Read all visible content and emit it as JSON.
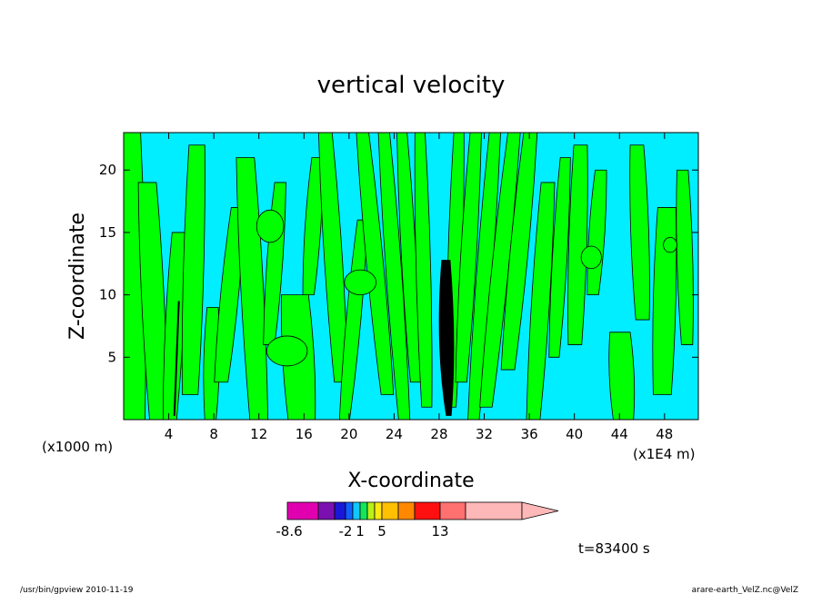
{
  "chart_data": {
    "type": "heatmap",
    "title": "vertical velocity",
    "xlabel": "X-coordinate",
    "ylabel": "Z-coordinate",
    "x_unit_left": "(x1000 m)",
    "x_unit_right": "(x1E4 m)",
    "xlim": [
      0,
      51
    ],
    "ylim": [
      0,
      23
    ],
    "x_ticks": [
      4,
      8,
      12,
      16,
      20,
      24,
      28,
      32,
      36,
      40,
      44,
      48
    ],
    "y_ticks": [
      5,
      10,
      15,
      20
    ],
    "colorbar": {
      "segments": [
        "#e000b0",
        "#7a10b0",
        "#1a18d8",
        "#1060ff",
        "#10c8ff",
        "#10e858",
        "#b8f018",
        "#ffe810",
        "#ffc000",
        "#ff8800",
        "#ff1010",
        "#ff7070",
        "#ffb8b8"
      ],
      "labels": [
        {
          "text": "-8.6",
          "index": 0
        },
        {
          "text": "-2",
          "index": 3
        },
        {
          "text": "1",
          "index": 5
        },
        {
          "text": "5",
          "index": 8
        },
        {
          "text": "13",
          "index": 11
        }
      ]
    },
    "background_color": "#00eeff",
    "updraft_color": "#00ff00"
  },
  "time_label": "t=83400 s",
  "footer_left": "/usr/bin/gpview   2010-11-19",
  "footer_right": "arare-earth_VelZ.nc@VelZ"
}
